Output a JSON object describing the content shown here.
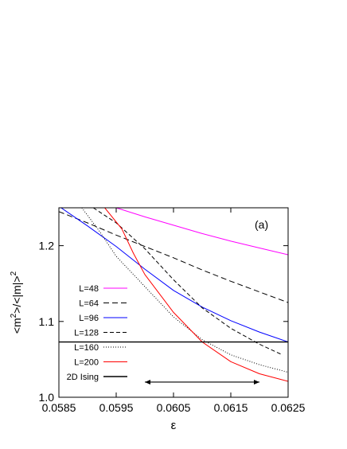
{
  "chart_data": {
    "type": "line",
    "panel_label": "(a)",
    "xlabel": "ε",
    "ylabel_parts": {
      "open": "<m",
      "sup1": "2",
      "mid": ">/<|m|>",
      "sup2": "2"
    },
    "xlim": [
      0.0585,
      0.0625
    ],
    "ylim": [
      1.0,
      1.25
    ],
    "x_ticks": [
      "0.0585",
      "0.0595",
      "0.0605",
      "0.0615",
      "0.0625"
    ],
    "x_tick_values": [
      0.0585,
      0.0595,
      0.0605,
      0.0615,
      0.0625
    ],
    "y_ticks": [
      "1.0",
      "1.1",
      "1.2"
    ],
    "y_tick_values": [
      1.0,
      1.1,
      1.2
    ],
    "legend_position": "bottom-left",
    "series": [
      {
        "name": "L=48",
        "color": "#ff00ff",
        "dash": "solid",
        "x": [
          0.0595,
          0.06,
          0.0605,
          0.061,
          0.0615,
          0.062,
          0.0625
        ],
        "y": [
          1.25,
          1.238,
          1.227,
          1.216,
          1.206,
          1.197,
          1.188
        ]
      },
      {
        "name": "L=64",
        "color": "#000000",
        "dash": "long-dash",
        "x": [
          0.0585,
          0.059,
          0.0595,
          0.06,
          0.0605,
          0.061,
          0.0615,
          0.062,
          0.0625
        ],
        "y": [
          1.245,
          1.23,
          1.214,
          1.199,
          1.184,
          1.168,
          1.153,
          1.139,
          1.125
        ]
      },
      {
        "name": "L=96",
        "color": "#0000ff",
        "dash": "solid",
        "x": [
          0.0585,
          0.059,
          0.0595,
          0.06,
          0.0605,
          0.061,
          0.0615,
          0.062,
          0.0625
        ],
        "y": [
          1.252,
          1.226,
          1.199,
          1.169,
          1.141,
          1.119,
          1.101,
          1.086,
          1.073
        ]
      },
      {
        "name": "L=128",
        "color": "#000000",
        "dash": "short-dash",
        "x": [
          0.0591,
          0.0595,
          0.06,
          0.0605,
          0.061,
          0.0615,
          0.062,
          0.0624
        ],
        "y": [
          1.25,
          1.23,
          1.196,
          1.155,
          1.118,
          1.091,
          1.07,
          1.056
        ]
      },
      {
        "name": "L=160",
        "color": "#000000",
        "dash": "dotted",
        "x": [
          0.0589,
          0.0592,
          0.0595,
          0.06,
          0.0605,
          0.061,
          0.0615,
          0.062,
          0.0625
        ],
        "y": [
          1.25,
          1.22,
          1.186,
          1.146,
          1.106,
          1.076,
          1.056,
          1.043,
          1.033
        ]
      },
      {
        "name": "L=200",
        "color": "#ff0000",
        "dash": "solid",
        "x": [
          0.0593,
          0.0596,
          0.0598,
          0.06,
          0.0605,
          0.061,
          0.0615,
          0.062,
          0.0625
        ],
        "y": [
          1.25,
          1.222,
          1.19,
          1.162,
          1.112,
          1.073,
          1.047,
          1.031,
          1.021
        ]
      },
      {
        "name": "2D Ising",
        "color": "#000000",
        "dash": "solid",
        "width": 1.4,
        "x": [
          0.0585,
          0.0625
        ],
        "y": [
          1.0729,
          1.0729
        ]
      }
    ],
    "annotations": [
      {
        "type": "double-arrow",
        "x_from": 0.06,
        "x_to": 0.062,
        "y": 1.02
      }
    ]
  }
}
